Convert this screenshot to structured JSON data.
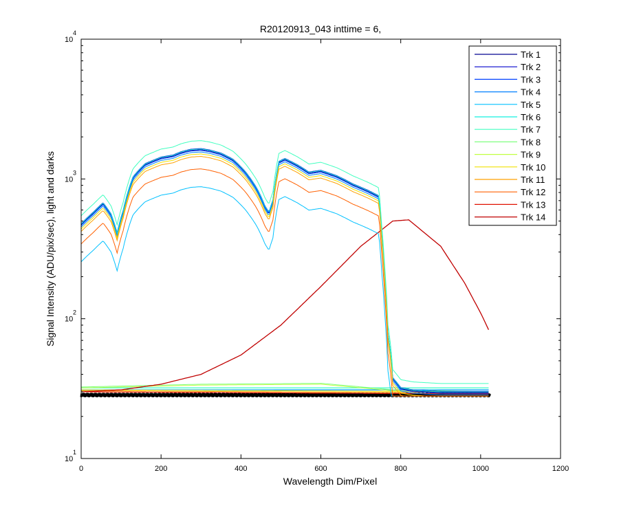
{
  "chart_data": {
    "type": "line",
    "title": "R20120913_043 inttime = 6,",
    "xlabel": "Wavelength Dim/Pixel",
    "ylabel": "Signal Intensity (ADU/pix/sec), light and darks",
    "xlim": [
      0,
      1200
    ],
    "ylim": [
      10,
      10000
    ],
    "yscale": "log",
    "grid": false,
    "legend_position": "top-right",
    "x_ticks": [
      "0",
      "200",
      "400",
      "600",
      "800",
      "1000",
      "1200"
    ],
    "y_ticks": [
      {
        "value": 10,
        "base": "10",
        "exp": "1"
      },
      {
        "value": 100,
        "base": "10",
        "exp": "2"
      },
      {
        "value": 1000,
        "base": "10",
        "exp": "3"
      },
      {
        "value": 10000,
        "base": "10",
        "exp": "4"
      }
    ],
    "series": [
      {
        "name": "Trk 1",
        "color": "#000090",
        "ref": 1620,
        "light_x": [
          0,
          1020
        ],
        "light_y": [
          31,
          31
        ]
      },
      {
        "name": "Trk 2",
        "color": "#0000cc",
        "ref": 1650,
        "light_x": [
          0,
          1020
        ],
        "light_y": [
          31,
          31
        ]
      },
      {
        "name": "Trk 3",
        "color": "#0040ff",
        "ref": 1600,
        "light_x": [
          0,
          1020
        ],
        "light_y": [
          31,
          31
        ]
      },
      {
        "name": "Trk 4",
        "color": "#0080ff",
        "ref": 1560,
        "light_x": [
          0,
          1020
        ],
        "light_y": [
          31,
          31
        ]
      },
      {
        "name": "Trk 5",
        "color": "#00c0ff",
        "ref": 880,
        "light_x": [
          0,
          1020
        ],
        "light_y": [
          31,
          31
        ]
      },
      {
        "name": "Trk 6",
        "color": "#10f0e0",
        "ref": 1640,
        "light_x": [
          0,
          1020
        ],
        "light_y": [
          32,
          32
        ]
      },
      {
        "name": "Trk 7",
        "color": "#40ffc0",
        "ref": 1880,
        "light_x": [
          0,
          1020
        ],
        "light_y": [
          32,
          32
        ]
      },
      {
        "name": "Trk 8",
        "color": "#80ff80",
        "light_x": [
          0,
          300,
          600,
          780,
          1020
        ],
        "light_y": [
          32.5,
          34,
          34.5,
          31,
          30
        ]
      },
      {
        "name": "Trk 9",
        "color": "#c0ff40",
        "light_x": [
          0,
          300,
          600,
          780,
          1020
        ],
        "light_y": [
          32,
          33.5,
          34,
          30.5,
          29.5
        ]
      },
      {
        "name": "Trk 10",
        "color": "#f0e000",
        "ref": 1510,
        "light_x": [
          0,
          1020
        ],
        "light_y": [
          31,
          30
        ]
      },
      {
        "name": "Trk 11",
        "color": "#ffa000",
        "ref": 1450,
        "light_x": [
          0,
          1020
        ],
        "light_y": [
          30.5,
          29.5
        ]
      },
      {
        "name": "Trk 12",
        "color": "#ff6000",
        "ref": 1180,
        "light_x": [
          0,
          1020
        ],
        "light_y": [
          30,
          29
        ]
      },
      {
        "name": "Trk 13",
        "color": "#e01000",
        "light_x": [
          0,
          1020
        ],
        "light_y": [
          30,
          29
        ]
      },
      {
        "name": "Trk 14",
        "color": "#c00000",
        "light_x": [
          0,
          100,
          200,
          300,
          400,
          500,
          600,
          700,
          780,
          820,
          900,
          960,
          1000,
          1023
        ],
        "light_y": [
          30,
          31,
          34,
          40,
          55,
          90,
          170,
          330,
          500,
          510,
          330,
          180,
          110,
          80
        ]
      }
    ],
    "base_profile": {
      "x": [
        0,
        30,
        55,
        75,
        90,
        105,
        130,
        160,
        200,
        230,
        250,
        275,
        300,
        320,
        350,
        380,
        410,
        440,
        460,
        470,
        480,
        495,
        510,
        540,
        570,
        600,
        640,
        680,
        720,
        745,
        752,
        760,
        768,
        780,
        800,
        830,
        870,
        900,
        1020
      ],
      "factor": [
        0.29,
        0.35,
        0.41,
        0.34,
        0.25,
        0.36,
        0.63,
        0.78,
        0.87,
        0.9,
        0.95,
        0.99,
        1.0,
        0.98,
        0.93,
        0.84,
        0.69,
        0.52,
        0.39,
        0.35,
        0.43,
        0.81,
        0.85,
        0.77,
        0.68,
        0.7,
        0.64,
        0.56,
        0.5,
        0.46,
        0.25,
        0.12,
        0.048,
        0.023,
        0.0195,
        0.0188,
        0.0185,
        0.0183,
        0.0183
      ]
    },
    "darks": {
      "color": "#000000",
      "x": [
        0,
        1023
      ],
      "y_range": [
        27.5,
        29.5
      ]
    }
  }
}
